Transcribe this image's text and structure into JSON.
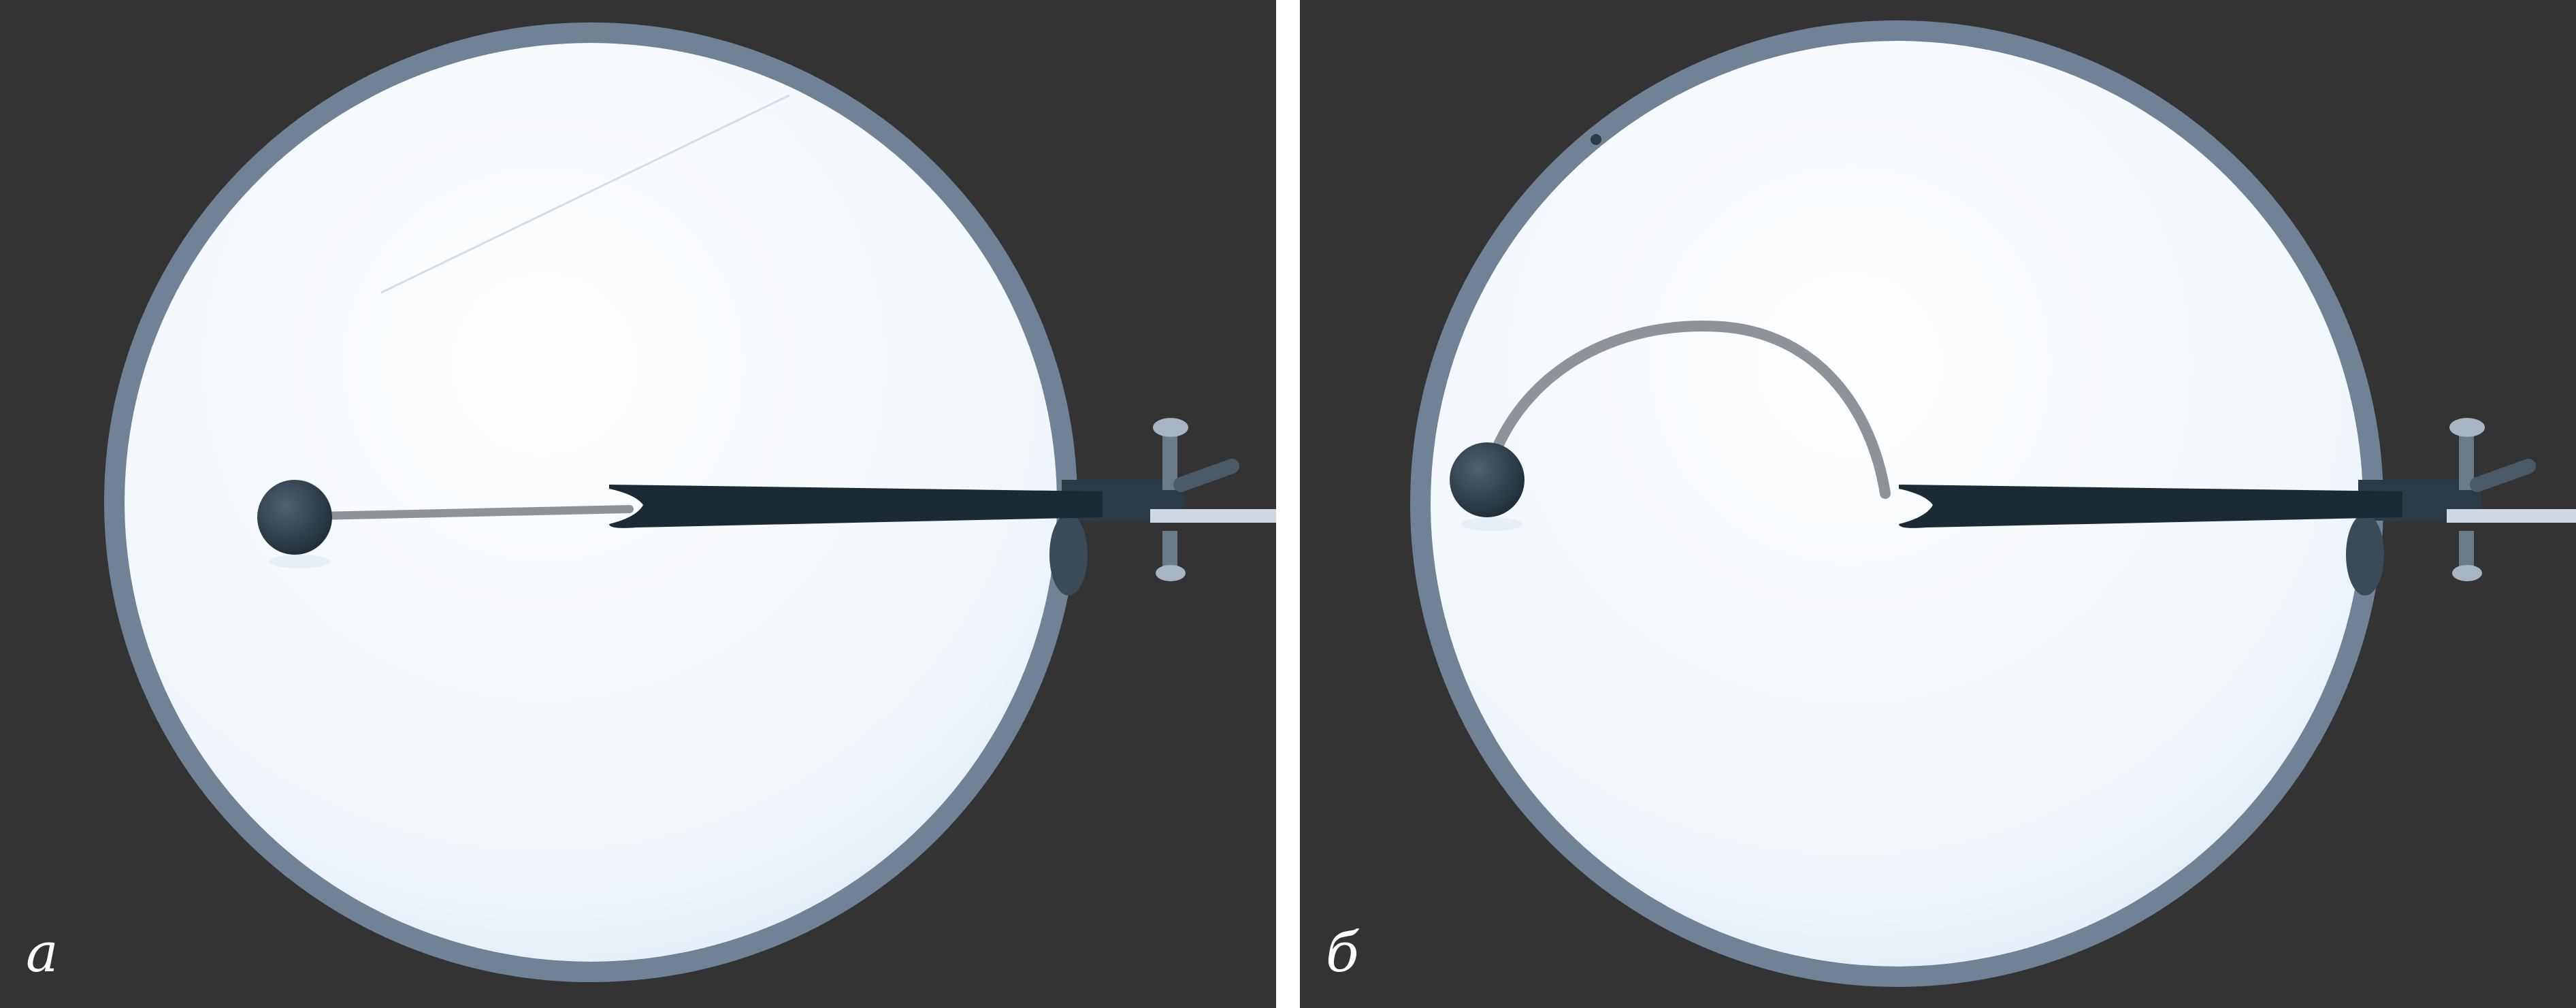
{
  "figure": {
    "panels": [
      {
        "label": "a",
        "rod_shape": "straight"
      },
      {
        "label": "б",
        "rod_shape": "bent"
      }
    ],
    "colors": {
      "background": "#333334",
      "separator": "#ffffff",
      "disk": "#fbfdff",
      "rim": "#6f8296",
      "ball": "#2f3e4a",
      "rod": "#8e9399",
      "clamp": "#1c2a33",
      "bracket": "#2b3a45",
      "label": "#ffffff"
    }
  }
}
